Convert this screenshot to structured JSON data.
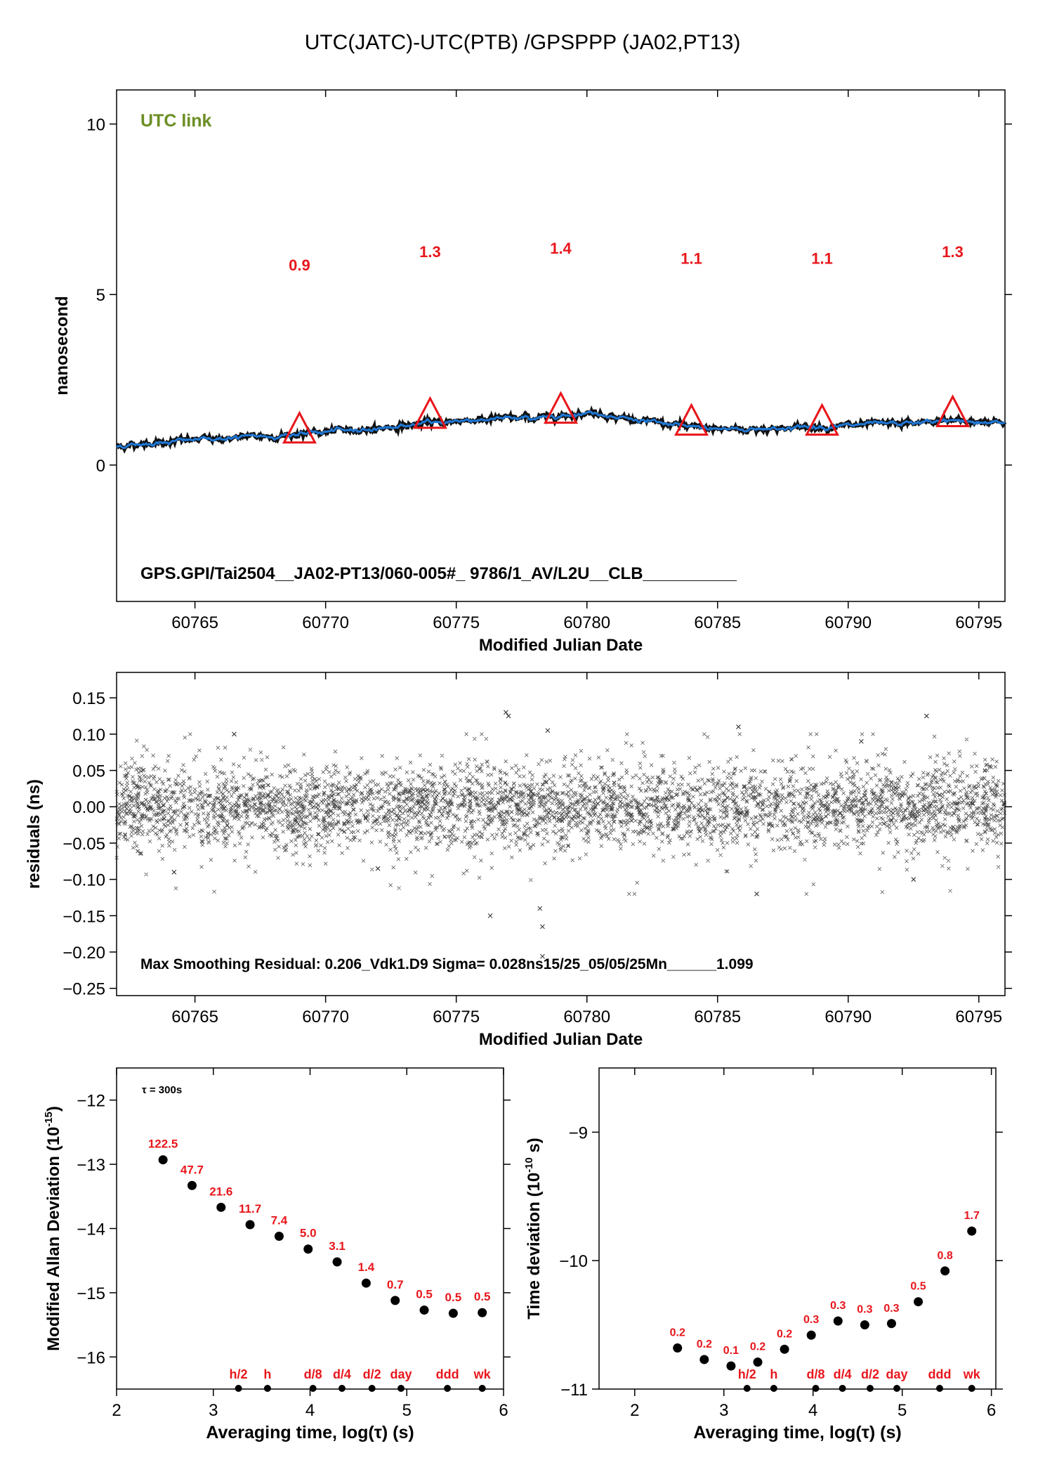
{
  "page": {
    "title": "UTC(JATC)-UTC(PTB)  /GPSPPP  (JA02,PT13)"
  },
  "colors": {
    "trace": "#1f77d4",
    "marker": "#e8161b",
    "label_red": "#e8161b",
    "tag_green": "#6b8e23",
    "residual": "#222222"
  },
  "chart_data": [
    {
      "type": "line",
      "xlabel": "Modified Julian Date",
      "ylabel": "nanosecond",
      "xlim": [
        60762,
        60796
      ],
      "ylim": [
        -4,
        11
      ],
      "xticks": [
        60765,
        60770,
        60775,
        60780,
        60785,
        60790,
        60795
      ],
      "yticks": [
        0,
        5,
        10
      ],
      "tag": "UTC link",
      "footer": "GPS.GPI/Tai2504__JA02-PT13/060-005#_  9786/1_AV/L2U__CLB__________",
      "series": [
        {
          "x": [
            60762,
            60764,
            60766,
            60768,
            60770,
            60772,
            60774,
            60776,
            60778,
            60780,
            60781,
            60782,
            60784,
            60786,
            60788,
            60790,
            60792,
            60794,
            60796
          ],
          "values": [
            0.55,
            0.7,
            0.78,
            0.85,
            0.97,
            1.08,
            1.23,
            1.35,
            1.38,
            1.55,
            1.45,
            1.3,
            1.1,
            1.05,
            1.1,
            1.15,
            1.2,
            1.3,
            1.25
          ]
        }
      ],
      "markers": [
        {
          "x": 60769,
          "y": 0.97,
          "label": "0.9",
          "label_y": 5.7
        },
        {
          "x": 60774,
          "y": 1.4,
          "label": "1.3",
          "label_y": 6.1
        },
        {
          "x": 60779,
          "y": 1.55,
          "label": "1.4",
          "label_y": 6.2
        },
        {
          "x": 60784,
          "y": 1.2,
          "label": "1.1",
          "label_y": 5.9
        },
        {
          "x": 60789,
          "y": 1.2,
          "label": "1.1",
          "label_y": 5.9
        },
        {
          "x": 60794,
          "y": 1.45,
          "label": "1.3",
          "label_y": 6.1
        }
      ]
    },
    {
      "type": "scatter",
      "xlabel": "Modified Julian Date",
      "ylabel": "residuals (ns)",
      "xlim": [
        60762,
        60796
      ],
      "ylim": [
        -0.26,
        0.185
      ],
      "xticks": [
        60765,
        60770,
        60775,
        60780,
        60785,
        60790,
        60795
      ],
      "yticks": [
        -0.25,
        -0.2,
        -0.15,
        -0.1,
        -0.05,
        0.0,
        0.05,
        0.1,
        0.15
      ],
      "ytick_labels": [
        "−0.25",
        "−0.20",
        "−0.15",
        "−0.10",
        "−0.05",
        "0.00",
        "0.05",
        "0.10",
        "0.15"
      ],
      "footer": "Max Smoothing Residual: 0.206_Vdk1.D9  Sigma= 0.028ns15/25_05/05/25Mn______1.099",
      "sigma": 0.028,
      "outliers": [
        {
          "x": 60766.5,
          "y": 0.1
        },
        {
          "x": 60776.9,
          "y": 0.13
        },
        {
          "x": 60777.0,
          "y": 0.125
        },
        {
          "x": 60776.3,
          "y": -0.15
        },
        {
          "x": 60778.2,
          "y": -0.14
        },
        {
          "x": 60778.3,
          "y": -0.165
        },
        {
          "x": 60778.3,
          "y": -0.206
        },
        {
          "x": 60778.5,
          "y": 0.105
        },
        {
          "x": 60785.8,
          "y": 0.11
        },
        {
          "x": 60793.0,
          "y": 0.125
        },
        {
          "x": 60764.2,
          "y": -0.09
        },
        {
          "x": 60792.5,
          "y": -0.1
        },
        {
          "x": 60786.5,
          "y": -0.12
        },
        {
          "x": 60772.0,
          "y": -0.085
        },
        {
          "x": 60790.5,
          "y": 0.09
        }
      ]
    },
    {
      "type": "scatter",
      "xlabel": "Averaging time, log(τ) (s)",
      "ylabel": "Modified Allan Deviation (10",
      "ylabel_sup": "-15",
      "ylabel_tail": ")",
      "xlim": [
        2,
        6
      ],
      "ylim": [
        -16.5,
        -11.5
      ],
      "xticks": [
        2,
        3,
        4,
        5,
        6
      ],
      "yticks": [
        -16,
        -15,
        -14,
        -13,
        -12
      ],
      "tag": "τ = 300s",
      "x": [
        2.48,
        2.78,
        3.08,
        3.38,
        3.68,
        3.98,
        4.28,
        4.58,
        4.88,
        5.18,
        5.48,
        5.78
      ],
      "values": [
        -12.93,
        -13.33,
        -13.67,
        -13.94,
        -14.12,
        -14.32,
        -14.52,
        -14.85,
        -15.12,
        -15.27,
        -15.32,
        -15.31
      ],
      "point_labels": [
        "122.5",
        "47.7",
        "21.6",
        "11.7",
        "7.4",
        "5.0",
        "3.1",
        "1.4",
        "0.7",
        "0.5",
        "0.5",
        "0.5"
      ],
      "time_marks": [
        {
          "x": 3.26,
          "label": "h/2"
        },
        {
          "x": 3.56,
          "label": "h"
        },
        {
          "x": 4.03,
          "label": "d/8"
        },
        {
          "x": 4.33,
          "label": "d/4"
        },
        {
          "x": 4.64,
          "label": "d/2"
        },
        {
          "x": 4.94,
          "label": "day"
        },
        {
          "x": 5.42,
          "label": "ddd"
        },
        {
          "x": 5.78,
          "label": "wk"
        }
      ]
    },
    {
      "type": "scatter",
      "xlabel": "Averaging time, log(τ) (s)",
      "ylabel": "Time deviation (10",
      "ylabel_sup": "-10",
      "ylabel_tail": " s)",
      "xlim": [
        1.6,
        6.05
      ],
      "ylim": [
        -11,
        -8.5
      ],
      "xticks": [
        2,
        3,
        4,
        5,
        6
      ],
      "yticks": [
        -11,
        -10,
        -9
      ],
      "x": [
        2.48,
        2.78,
        3.08,
        3.38,
        3.68,
        3.98,
        4.28,
        4.58,
        4.88,
        5.18,
        5.48,
        5.78
      ],
      "values": [
        -10.68,
        -10.77,
        -10.82,
        -10.79,
        -10.69,
        -10.58,
        -10.47,
        -10.5,
        -10.49,
        -10.32,
        -10.08,
        -9.77
      ],
      "point_labels": [
        "0.2",
        "0.2",
        "0.1",
        "0.2",
        "0.2",
        "0.3",
        "0.3",
        "0.3",
        "0.3",
        "0.5",
        "0.8",
        "1.7"
      ],
      "time_marks": [
        {
          "x": 3.26,
          "label": "h/2"
        },
        {
          "x": 3.56,
          "label": "h"
        },
        {
          "x": 4.03,
          "label": "d/8"
        },
        {
          "x": 4.33,
          "label": "d/4"
        },
        {
          "x": 4.64,
          "label": "d/2"
        },
        {
          "x": 4.94,
          "label": "day"
        },
        {
          "x": 5.42,
          "label": "ddd"
        },
        {
          "x": 5.78,
          "label": "wk"
        }
      ]
    }
  ]
}
